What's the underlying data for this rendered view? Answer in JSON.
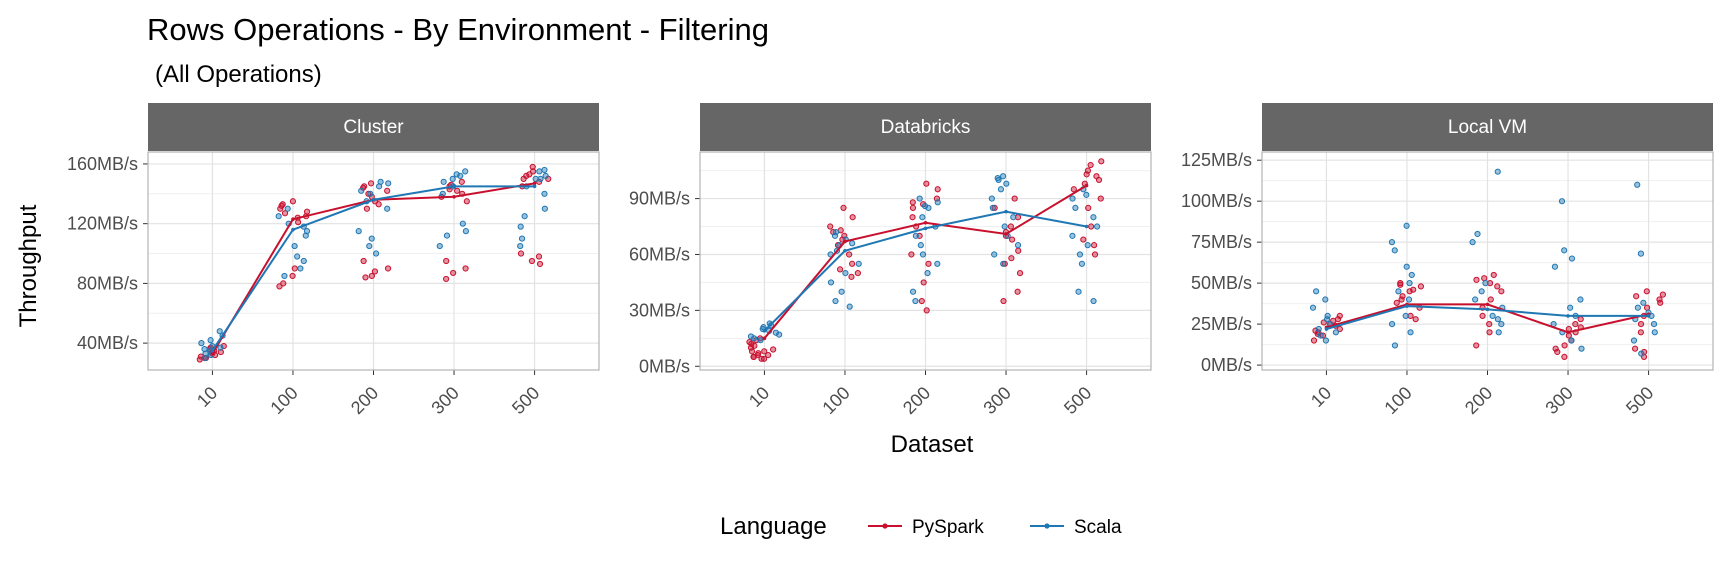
{
  "chart_data": {
    "type": "line",
    "title": "Rows Operations - By Environment - Filtering",
    "subtitle": "(All Operations)",
    "xlabel": "Dataset",
    "ylabel": "Throughput",
    "categories": [
      "10",
      "100",
      "200",
      "300",
      "500"
    ],
    "legend": {
      "title": "Language",
      "position": "bottom",
      "entries": [
        {
          "name": "PySpark",
          "color": "#c8102e"
        },
        {
          "name": "Scala",
          "color": "#1f77b4"
        }
      ]
    },
    "grid": true,
    "panels": [
      {
        "name": "Cluster",
        "ylim": [
          22,
          168
        ],
        "yticks": [
          40,
          80,
          120,
          160
        ],
        "ytick_labels": [
          "40MB/s",
          "80MB/s",
          "120MB/s",
          "160MB/s"
        ],
        "series": [
          {
            "name": "PySpark",
            "values": [
              33,
              123,
              136,
              138,
              147
            ],
            "points": [
              [
                33,
                35,
                31,
                30,
                37,
                34,
                29,
                38,
                32,
                36,
                30,
                34
              ],
              [
                124,
                130,
                135,
                127,
                121,
                133,
                90,
                85,
                80,
                78,
                125,
                128,
                132
              ],
              [
                138,
                142,
                145,
                147,
                135,
                133,
                130,
                95,
                90,
                85,
                84,
                88,
                140,
                144
              ],
              [
                140,
                143,
                145,
                138,
                135,
                95,
                90,
                87,
                83,
                142,
                146,
                148
              ],
              [
                148,
                150,
                152,
                155,
                145,
                100,
                95,
                93,
                98,
                150,
                153,
                158
              ]
            ]
          },
          {
            "name": "Scala",
            "values": [
              35,
              116,
              136,
              145,
              145
            ],
            "points": [
              [
                38,
                42,
                45,
                32,
                35,
                30,
                36,
                48,
                40,
                33,
                37
              ],
              [
                118,
                115,
                112,
                95,
                90,
                98,
                105,
                125,
                130,
                120,
                85
              ],
              [
                140,
                145,
                148,
                135,
                130,
                115,
                105,
                100,
                110,
                142,
                147
              ],
              [
                150,
                155,
                153,
                145,
                140,
                120,
                115,
                112,
                105,
                148,
                152
              ],
              [
                150,
                155,
                152,
                145,
                140,
                125,
                118,
                110,
                105,
                150,
                156,
                130
              ]
            ]
          }
        ]
      },
      {
        "name": "Databricks",
        "ylim": [
          -2,
          115
        ],
        "yticks": [
          0,
          30,
          60,
          90
        ],
        "ytick_labels": [
          "0MB/s",
          "30MB/s",
          "60MB/s",
          "90MB/s"
        ],
        "series": [
          {
            "name": "PySpark",
            "values": [
              15,
              67,
              77,
              71,
              97
            ],
            "points": [
              [
                5,
                8,
                10,
                6,
                4,
                12,
                15,
                14,
                7,
                9,
                5,
                11,
                13,
                6,
                8,
                4
              ],
              [
                72,
                70,
                68,
                75,
                80,
                85,
                55,
                52,
                50,
                48,
                60,
                65,
                73
              ],
              [
                88,
                90,
                85,
                80,
                75,
                70,
                60,
                55,
                45,
                35,
                30,
                95,
                98,
                87
              ],
              [
                85,
                80,
                75,
                70,
                62,
                58,
                55,
                50,
                40,
                35,
                72,
                68,
                90
              ],
              [
                100,
                105,
                110,
                108,
                102,
                98,
                95,
                90,
                85,
                75,
                68,
                65,
                60,
                103
              ]
            ]
          },
          {
            "name": "Scala",
            "values": [
              19,
              62,
              74,
              83,
              75
            ],
            "points": [
              [
                20,
                18,
                22,
                16,
                14,
                21,
                17,
                19,
                15,
                23
              ],
              [
                70,
                72,
                68,
                65,
                60,
                55,
                50,
                45,
                40,
                35,
                32,
                62,
                66
              ],
              [
                90,
                88,
                85,
                80,
                75,
                70,
                65,
                60,
                55,
                50,
                40,
                35,
                86
              ],
              [
                100,
                102,
                98,
                95,
                90,
                85,
                80,
                75,
                70,
                65,
                60,
                55,
                101
              ],
              [
                95,
                90,
                85,
                80,
                75,
                70,
                65,
                60,
                55,
                40,
                35,
                92
              ]
            ]
          }
        ]
      },
      {
        "name": "Local VM",
        "ylim": [
          -3,
          130
        ],
        "yticks": [
          0,
          25,
          50,
          75,
          100,
          125
        ],
        "ytick_labels": [
          "0MB/s",
          "25MB/s",
          "50MB/s",
          "75MB/s",
          "100MB/s",
          "125MB/s"
        ],
        "series": [
          {
            "name": "PySpark",
            "values": [
              23,
              37,
              37,
              20,
              31
            ],
            "points": [
              [
                20,
                25,
                28,
                22,
                18,
                30,
                24,
                26,
                15,
                19,
                21,
                27
              ],
              [
                45,
                48,
                50,
                42,
                40,
                38,
                35,
                30,
                28,
                46,
                49
              ],
              [
                50,
                52,
                55,
                45,
                40,
                35,
                30,
                25,
                20,
                12,
                53,
                48
              ],
              [
                25,
                22,
                18,
                15,
                12,
                10,
                8,
                5,
                28,
                20,
                23
              ],
              [
                35,
                40,
                45,
                42,
                38,
                30,
                25,
                20,
                10,
                8,
                5,
                43
              ]
            ]
          },
          {
            "name": "Scala",
            "values": [
              22,
              36,
              34,
              30,
              30
            ],
            "points": [
              [
                20,
                25,
                30,
                35,
                40,
                45,
                15,
                18,
                22,
                28
              ],
              [
                40,
                45,
                50,
                55,
                60,
                70,
                75,
                85,
                30,
                25,
                20,
                12
              ],
              [
                40,
                45,
                50,
                30,
                25,
                20,
                80,
                75,
                118,
                35,
                28
              ],
              [
                30,
                35,
                40,
                25,
                20,
                15,
                60,
                65,
                70,
                100,
                10
              ],
              [
                30,
                35,
                25,
                20,
                15,
                68,
                110,
                38,
                28,
                7,
                32
              ]
            ]
          }
        ]
      }
    ]
  }
}
